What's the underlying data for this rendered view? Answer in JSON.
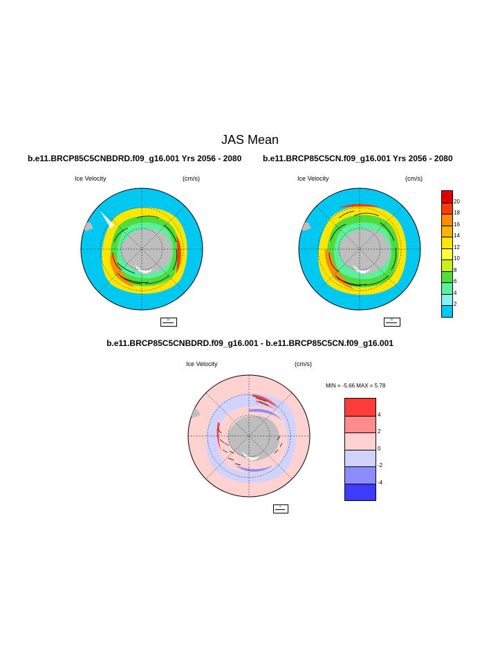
{
  "title": "JAS Mean",
  "panels": [
    {
      "name": "left",
      "title": "b.e11.BRCP85C5CNBDRD.f09_g16.001  Yrs 2056 - 2080",
      "variable": "Ice Velocity",
      "units": "(cm/s)",
      "ref_vector": "10"
    },
    {
      "name": "right",
      "title": "b.e11.BRCP85C5CN.f09_g16.001  Yrs 2056 - 2080",
      "variable": "Ice Velocity",
      "units": "(cm/s)",
      "ref_vector": "10"
    },
    {
      "name": "diff",
      "title": "b.e11.BRCP85C5CNBDRD.f09_g16.001 - b.e11.BRCP85C5CN.f09_g16.001",
      "variable": "Ice Velocity",
      "units": "(cm/s)",
      "ref_vector": "4",
      "minmax": "MIN =  -5.66 MAX =   5.78"
    }
  ],
  "colorbar_top": {
    "labels": [
      "20",
      "18",
      "16",
      "14",
      "12",
      "10",
      "8",
      "6",
      "4",
      "2"
    ],
    "colors": [
      "#e00000",
      "#ff3c00",
      "#ff8c00",
      "#ffb400",
      "#ffe600",
      "#ffff3c",
      "#c8f01e",
      "#50dc3c",
      "#5af0a0",
      "#8cf0f0",
      "#00c8f0"
    ]
  },
  "colorbar_diff": {
    "labels": [
      "4",
      "2",
      "0",
      "-2",
      "-4"
    ],
    "colors": [
      "#ff3c3c",
      "#ff8c8c",
      "#ffd2d2",
      "#d2d2ff",
      "#8c8cff",
      "#3c3cff"
    ]
  },
  "colors": {
    "ocean": "#00c8f0",
    "land": "#bebebe",
    "diff_background": "#ffd2d2"
  }
}
